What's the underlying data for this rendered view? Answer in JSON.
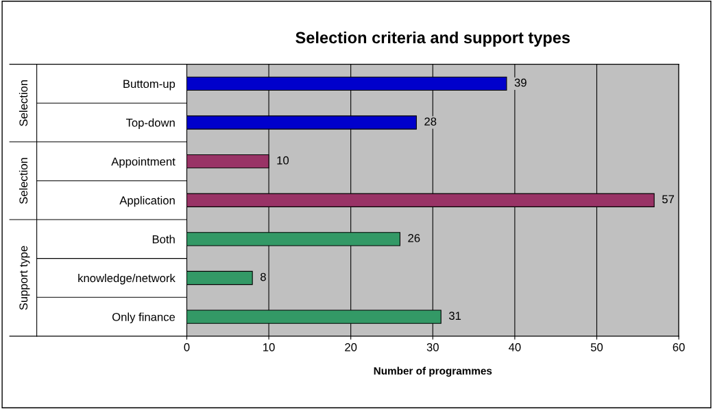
{
  "chart_data": {
    "type": "bar",
    "orientation": "horizontal",
    "title": "Selection criteria and support types",
    "xlabel": "Number of programmes",
    "categories": [
      "Buttom-up",
      "Top-down",
      "Appointment",
      "Application",
      "Both",
      "knowledge/network",
      "Only finance"
    ],
    "values": [
      39,
      28,
      10,
      57,
      26,
      8,
      31
    ],
    "colors": [
      "#0000cc",
      "#0000cc",
      "#993366",
      "#993366",
      "#339966",
      "#339966",
      "#339966"
    ],
    "annotations": [
      "Selection",
      "Selection",
      "Support type"
    ],
    "xlim": [
      0,
      60
    ],
    "xticks": [
      0,
      10,
      20,
      30,
      40,
      50,
      60
    ],
    "grid": "x",
    "data_labels": true
  }
}
